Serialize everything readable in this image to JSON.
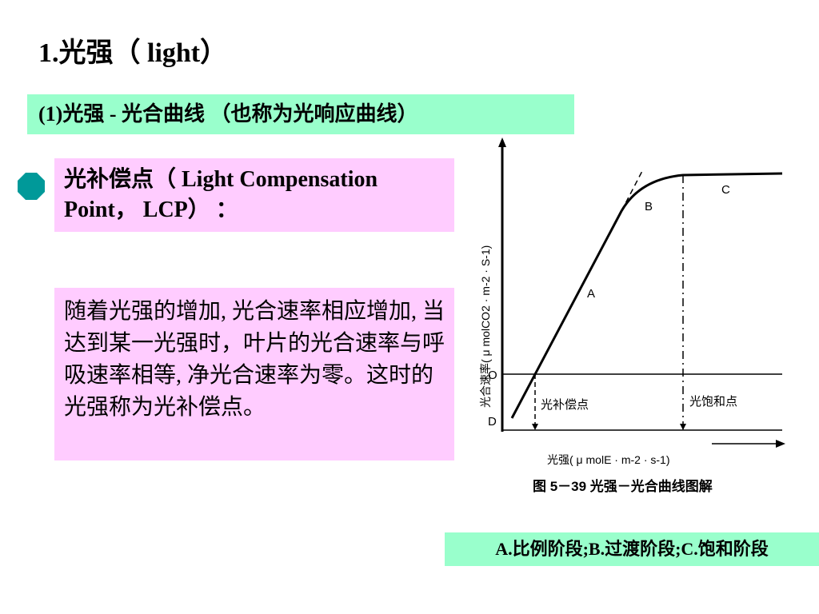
{
  "slide": {
    "title": "1.光强（ light）",
    "subtitle": "(1)光强 - 光合曲线 （也称为光响应曲线）",
    "lcp_heading_line1": "光补偿点（ Light Compensation",
    "lcp_heading_line2": "Point， LCP） ：",
    "description": "随着光强的增加, 光合速率相应增加, 当达到某一光强时，叶片的光合速率与呼吸速率相等, 净光合速率为零。这时的光强称为光补偿点。",
    "legend": "A.比例阶段;B.过渡阶段;C.饱和阶段",
    "colors": {
      "subtitle_bg": "#99ffcc",
      "box_bg": "#ffccff",
      "bullet": "#009999"
    }
  },
  "figure": {
    "ylabel": "光合速率( μ molCO2 · m-2 · S-1)",
    "xlabel": "光强( μ molE · m-2 · s-1)",
    "caption": "图 5－39  光强－光合曲线图解",
    "origin_label": "O",
    "d_label": "D",
    "segment_labels": {
      "a": "A",
      "b": "B",
      "c": "C"
    },
    "compensation_label": "光补偿点",
    "saturation_label": "光饱和点"
  },
  "chart_data": {
    "type": "line",
    "title": "图 5－39  光强－光合曲线图解",
    "xlabel": "光强( μ molE · m-2 · s-1)",
    "ylabel": "光合速率( μ molCO2 · m-2 · S-1)",
    "series": [
      {
        "x": [
          0,
          0.12,
          0.5,
          0.61,
          0.9,
          1.0
        ],
        "y": [
          -0.18,
          0,
          0.62,
          0.78,
          0.85,
          0.85
        ]
      }
    ],
    "annotations": [
      "A",
      "B",
      "C",
      "光补偿点",
      "光饱和点",
      "O",
      "D"
    ],
    "grid": false
  }
}
